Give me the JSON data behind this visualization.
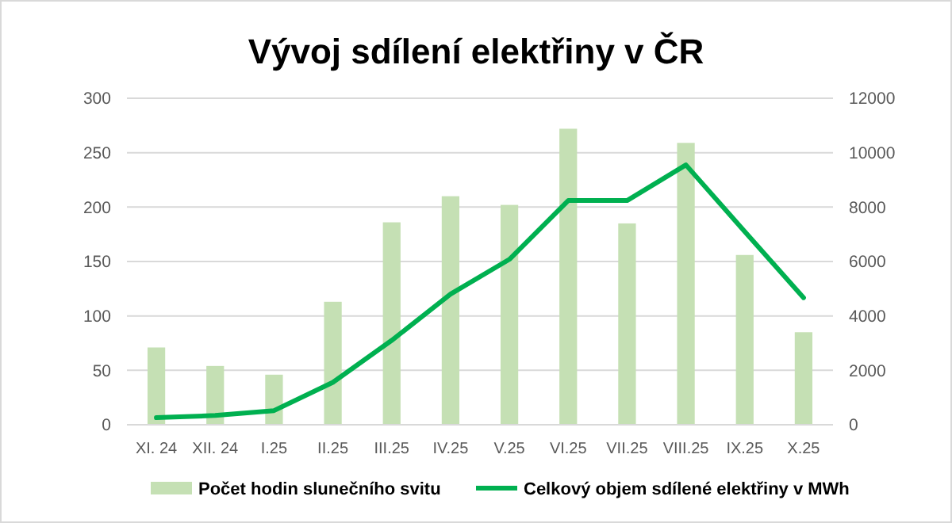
{
  "chart_data": {
    "type": "bar",
    "title": "Vývoj sdílení elektřiny v ČR",
    "categories": [
      "XI. 24",
      "XII. 24",
      "I.25",
      "II.25",
      "III.25",
      "IV.25",
      "V.25",
      "VI.25",
      "VII.25",
      "VIII.25",
      "IX.25",
      "X.25"
    ],
    "series": [
      {
        "name": "Počet hodin slunečního svitu",
        "color": "#c5e0b4",
        "values": [
          71,
          54,
          46,
          113,
          186,
          210,
          202,
          272,
          185,
          259,
          156,
          85
        ]
      },
      {
        "name": "Celkový objem sdílené elektřiny v MWh",
        "type": "line",
        "axis": "y2",
        "color": "#00b050",
        "values": [
          260,
          340,
          520,
          1560,
          3100,
          4800,
          6080,
          8240,
          8240,
          9550,
          7100,
          4670
        ]
      }
    ],
    "ylim": [
      0,
      300
    ],
    "yticks": [
      0,
      50,
      100,
      150,
      200,
      250,
      300
    ],
    "y2lim": [
      0,
      12000
    ],
    "y2ticks": [
      0,
      2000,
      4000,
      6000,
      8000,
      10000,
      12000
    ],
    "grid": "y",
    "legend": "bottom",
    "line_style": "solid",
    "marker": "none"
  }
}
